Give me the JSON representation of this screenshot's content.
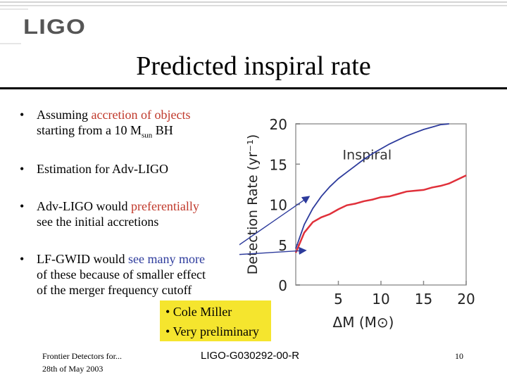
{
  "logo": {
    "text": "LIGO"
  },
  "title": "Predicted inspiral rate",
  "bullets": [
    {
      "parts": [
        "Assuming ",
        "accretion of objects",
        ""
      ],
      "line2": "starting from a 10 M",
      "sub": "sun",
      "line2_end": "  BH"
    },
    {
      "text": "Estimation for Adv-LIGO"
    },
    {
      "parts": [
        "Adv-LIGO would ",
        "preferentially",
        ""
      ],
      "line2": "see the initial accretions"
    },
    {
      "parts": [
        "LF-GWID would ",
        "see many more",
        ""
      ],
      "line2": "of these  because of smaller effect",
      "line3": "of the merger frequency cutoff"
    }
  ],
  "note": {
    "line1": "• Cole Miller",
    "line2": "• Very preliminary"
  },
  "footer": {
    "left1": "Frontier Detectors for...",
    "left2": "28th of May 2003",
    "center": "LIGO-G030292-00-R",
    "page": "10"
  },
  "colors": {
    "accent_red": "#c0392b",
    "accent_blue": "#2d3b9c",
    "note_bg": "#f5e52e",
    "curve_red": "#e0303a",
    "arrow_blue": "#2d3b9c"
  },
  "chart_data": {
    "type": "line",
    "title": "",
    "xlabel": "ΔM (M⊙)",
    "ylabel": "Detection Rate (yr⁻¹)",
    "xlim": [
      0,
      20
    ],
    "ylim": [
      0,
      20
    ],
    "xticks": [
      5,
      10,
      15,
      20
    ],
    "yticks": [
      0,
      5,
      10,
      15,
      20
    ],
    "annotation": "Inspiral",
    "series": [
      {
        "name": "",
        "color": "#e0303a",
        "x": [
          0,
          1,
          2,
          3,
          4,
          5,
          6,
          7,
          8,
          9,
          10,
          11,
          12,
          13,
          14,
          15,
          16,
          17,
          18,
          19,
          20
        ],
        "values": [
          4.0,
          6.5,
          7.8,
          8.4,
          8.8,
          9.4,
          9.9,
          10.1,
          10.4,
          10.6,
          10.9,
          11.0,
          11.3,
          11.6,
          11.7,
          11.8,
          12.1,
          12.3,
          12.6,
          13.1,
          13.6
        ]
      }
    ],
    "curve_upper": {
      "x": [
        0,
        1,
        2,
        3,
        4,
        5,
        6,
        7,
        8,
        9,
        10,
        11,
        12,
        13,
        14,
        15,
        16,
        17,
        18
      ],
      "values": [
        4.5,
        7.5,
        9.5,
        11.0,
        12.2,
        13.2,
        14.0,
        14.8,
        15.6,
        16.3,
        16.9,
        17.5,
        18.0,
        18.5,
        18.9,
        19.3,
        19.6,
        19.9,
        20.0
      ]
    },
    "arrows": [
      {
        "to_x": 1.6,
        "to_y": 11.0
      },
      {
        "to_x": 1.2,
        "to_y": 4.3
      }
    ]
  }
}
